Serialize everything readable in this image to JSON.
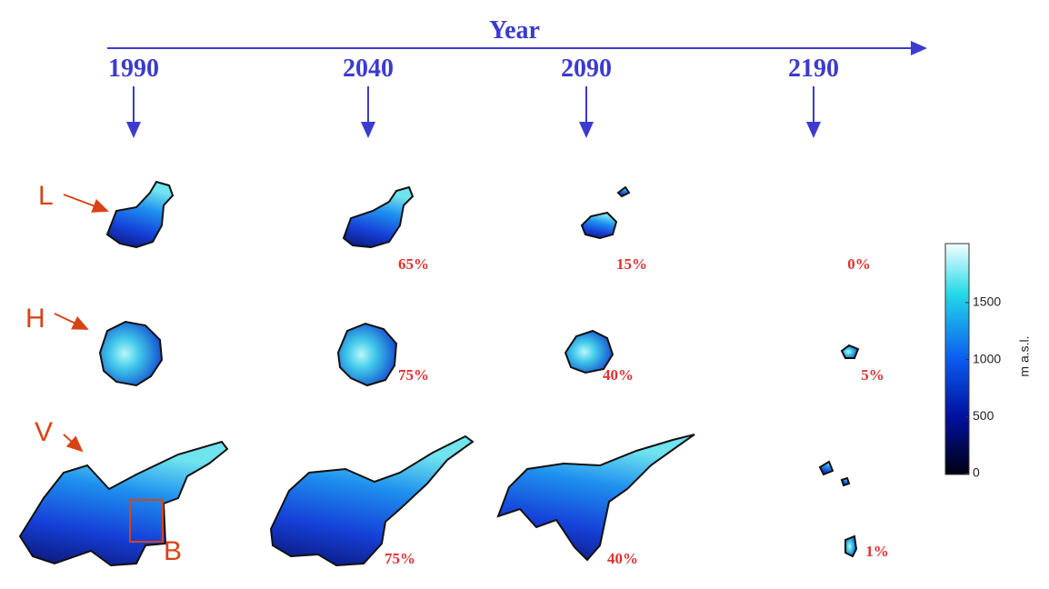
{
  "header": {
    "title": "Year"
  },
  "years": [
    "1990",
    "2040",
    "2090",
    "2190"
  ],
  "glaciers": [
    {
      "label": "L",
      "shares": [
        "65%",
        "15%",
        "0%"
      ]
    },
    {
      "label": "H",
      "shares": [
        "75%",
        "40%",
        "5%"
      ]
    },
    {
      "label": "V",
      "shares": [
        "75%",
        "40%",
        "1%"
      ]
    }
  ],
  "box_label": "B",
  "colorbar": {
    "ticks": [
      0,
      500,
      1000,
      1500
    ],
    "label": "m a.s.l."
  }
}
